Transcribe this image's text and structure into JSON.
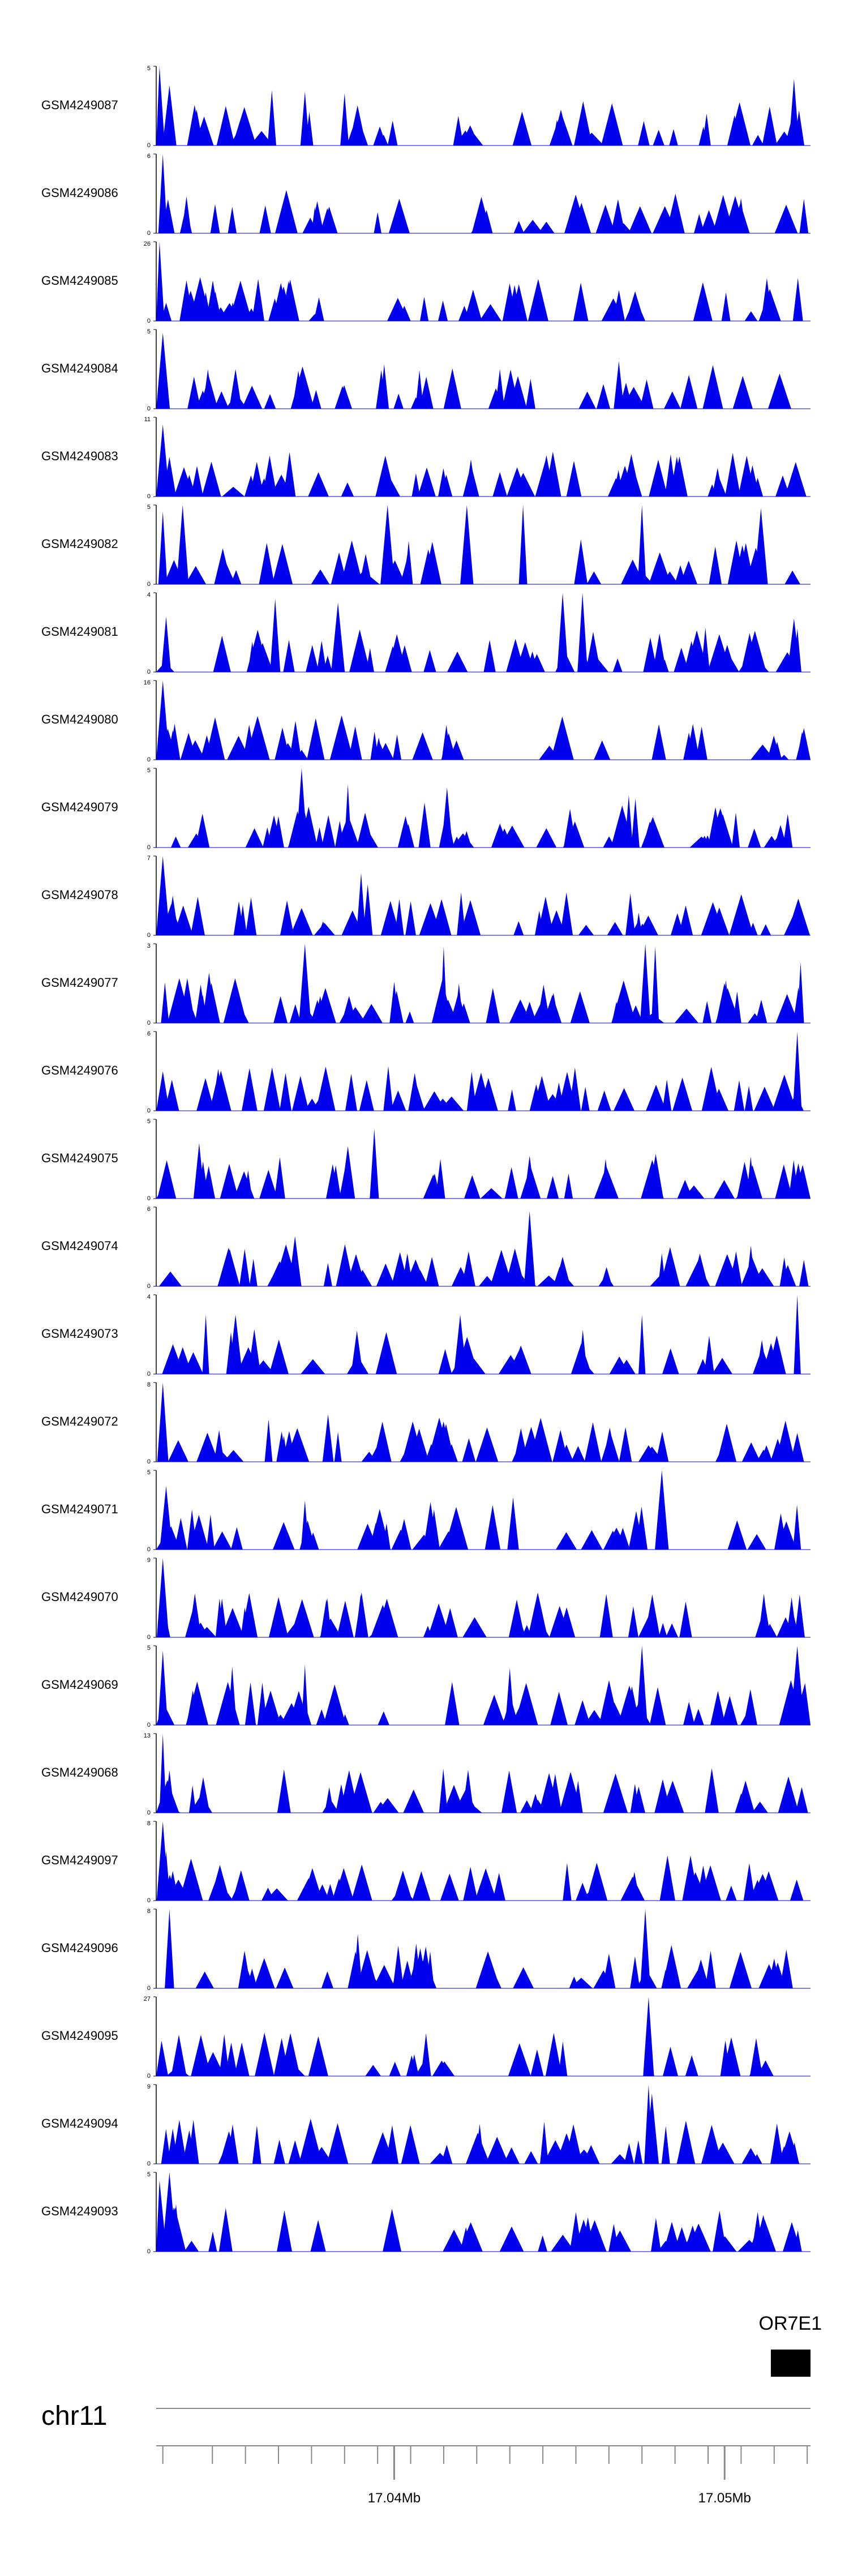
{
  "colors": {
    "fill": "#0000ee",
    "axis": "#000000",
    "text": "#000000",
    "ruler": "#888888"
  },
  "chart_data": {
    "type": "area",
    "genomic_range_mb": [
      17.0328,
      17.0526
    ],
    "tracks": [
      {
        "name": "GSM4249087",
        "ymax": "5",
        "ylim": [
          0,
          5
        ],
        "seed": 87,
        "peaks": [
          [
            17.0329,
            5.0
          ],
          [
            17.0332,
            3.8
          ],
          [
            17.0363,
            3.5
          ],
          [
            17.0373,
            3.4
          ],
          [
            17.0385,
            3.3
          ],
          [
            17.0503,
            1.9
          ],
          [
            17.0521,
            4.2
          ]
        ]
      },
      {
        "name": "GSM4249086",
        "ymax": "6",
        "ylim": [
          0,
          6
        ],
        "seed": 86,
        "peaks": [
          [
            17.033,
            6.0
          ],
          [
            17.0337,
            2.0
          ],
          [
            17.0361,
            2.1
          ],
          [
            17.0376,
            2.0
          ],
          [
            17.0395,
            1.6
          ],
          [
            17.0524,
            2.6
          ]
        ]
      },
      {
        "name": "GSM4249085",
        "ymax": "26",
        "ylim": [
          0,
          26
        ],
        "seed": 85,
        "peaks": [
          [
            17.0329,
            26.0
          ],
          [
            17.0331,
            6.0
          ],
          [
            17.0346,
            2.0
          ],
          [
            17.0376,
            2.3
          ],
          [
            17.0467,
            2.0
          ],
          [
            17.0508,
            3.2
          ]
        ]
      },
      {
        "name": "GSM4249084",
        "ymax": "5",
        "ylim": [
          0,
          5
        ],
        "seed": 84,
        "peaks": [
          [
            17.033,
            4.8
          ],
          [
            17.0352,
            2.5
          ],
          [
            17.0371,
            2.4
          ],
          [
            17.0397,
            2.8
          ],
          [
            17.0432,
            2.5
          ],
          [
            17.0468,
            3.0
          ]
        ]
      },
      {
        "name": "GSM4249083",
        "ymax": "11",
        "ylim": [
          0,
          11
        ],
        "seed": 83,
        "peaks": [
          [
            17.033,
            10.0
          ],
          [
            17.0332,
            5.5
          ],
          [
            17.0338,
            3.0
          ],
          [
            17.0368,
            3.5
          ],
          [
            17.0432,
            3.4
          ],
          [
            17.0473,
            3.1
          ],
          [
            17.051,
            2.6
          ]
        ]
      },
      {
        "name": "GSM4249082",
        "ymax": "5",
        "ylim": [
          0,
          5
        ],
        "seed": 82,
        "peaks": [
          [
            17.033,
            4.6
          ],
          [
            17.0336,
            5.0
          ],
          [
            17.0398,
            5.0
          ],
          [
            17.0422,
            5.0
          ],
          [
            17.0439,
            5.0
          ],
          [
            17.0475,
            5.0
          ],
          [
            17.0511,
            4.8
          ]
        ]
      },
      {
        "name": "GSM4249081",
        "ymax": "4",
        "ylim": [
          0,
          4
        ],
        "seed": 81,
        "peaks": [
          [
            17.0331,
            2.8
          ],
          [
            17.0364,
            3.7
          ],
          [
            17.0383,
            3.5
          ],
          [
            17.0451,
            4.0
          ],
          [
            17.0457,
            4.0
          ],
          [
            17.0521,
            2.7
          ]
        ]
      },
      {
        "name": "GSM4249080",
        "ymax": "16",
        "ylim": [
          0,
          16
        ],
        "seed": 80,
        "peaks": [
          [
            17.033,
            16.0
          ],
          [
            17.0333,
            6.0
          ],
          [
            17.0372,
            2.0
          ],
          [
            17.048,
            1.5
          ],
          [
            17.0518,
            1.0
          ]
        ]
      },
      {
        "name": "GSM4249079",
        "ymax": "5",
        "ylim": [
          0,
          5
        ],
        "seed": 79,
        "peaks": [
          [
            17.0372,
            5.0
          ],
          [
            17.0386,
            4.0
          ],
          [
            17.0416,
            3.8
          ],
          [
            17.0471,
            3.3
          ],
          [
            17.0473,
            3.1
          ],
          [
            17.0509,
            1.2
          ]
        ]
      },
      {
        "name": "GSM4249078",
        "ymax": "7",
        "ylim": [
          0,
          7
        ],
        "seed": 78,
        "peaks": [
          [
            17.033,
            7.0
          ],
          [
            17.0333,
            3.5
          ],
          [
            17.0353,
            3.0
          ],
          [
            17.039,
            5.5
          ],
          [
            17.0392,
            4.5
          ],
          [
            17.0405,
            3.0
          ],
          [
            17.0474,
            2.0
          ]
        ]
      },
      {
        "name": "GSM4249077",
        "ymax": "3",
        "ylim": [
          0,
          3
        ],
        "seed": 77,
        "peaks": [
          [
            17.0344,
            1.9
          ],
          [
            17.0373,
            3.0
          ],
          [
            17.0415,
            2.9
          ],
          [
            17.0476,
            3.0
          ],
          [
            17.0479,
            2.9
          ],
          [
            17.0523,
            2.3
          ]
        ]
      },
      {
        "name": "GSM4249076",
        "ymax": "6",
        "ylim": [
          0,
          6
        ],
        "seed": 76,
        "peaks": [
          [
            17.033,
            3.0
          ],
          [
            17.0346,
            2.0
          ],
          [
            17.0387,
            2.8
          ],
          [
            17.0443,
            2.0
          ],
          [
            17.0522,
            6.0
          ]
        ]
      },
      {
        "name": "GSM4249075",
        "ymax": "5",
        "ylim": [
          0,
          5
        ],
        "seed": 75,
        "peaks": [
          [
            17.0341,
            3.5
          ],
          [
            17.0386,
            3.3
          ],
          [
            17.0394,
            4.4
          ],
          [
            17.0414,
            2.5
          ],
          [
            17.0441,
            2.7
          ],
          [
            17.0464,
            2.5
          ]
        ]
      },
      {
        "name": "GSM4249074",
        "ymax": "6",
        "ylim": [
          0,
          6
        ],
        "seed": 74,
        "peaks": [
          [
            17.037,
            3.8
          ],
          [
            17.0404,
            2.5
          ],
          [
            17.0441,
            5.7
          ],
          [
            17.0481,
            2.5
          ],
          [
            17.0503,
            2.0
          ],
          [
            17.0524,
            2.0
          ]
        ]
      },
      {
        "name": "GSM4249073",
        "ymax": "4",
        "ylim": [
          0,
          4
        ],
        "seed": 73,
        "peaks": [
          [
            17.0343,
            3.0
          ],
          [
            17.0352,
            3.0
          ],
          [
            17.042,
            3.0
          ],
          [
            17.0475,
            3.0
          ],
          [
            17.0522,
            4.0
          ]
        ]
      },
      {
        "name": "GSM4249072",
        "ymax": "8",
        "ylim": [
          0,
          8
        ],
        "seed": 72,
        "peaks": [
          [
            17.033,
            8.0
          ],
          [
            17.0362,
            4.3
          ],
          [
            17.038,
            4.8
          ],
          [
            17.0383,
            3.0
          ],
          [
            17.047,
            3.5
          ],
          [
            17.0522,
            2.9
          ]
        ]
      },
      {
        "name": "GSM4249071",
        "ymax": "5",
        "ylim": [
          0,
          5
        ],
        "seed": 71,
        "peaks": [
          [
            17.0331,
            4.0
          ],
          [
            17.0373,
            3.1
          ],
          [
            17.0411,
            3.0
          ],
          [
            17.0436,
            3.3
          ],
          [
            17.0481,
            5.0
          ]
        ]
      },
      {
        "name": "GSM4249070",
        "ymax": "9",
        "ylim": [
          0,
          9
        ],
        "seed": 70,
        "peaks": [
          [
            17.033,
            9.0
          ],
          [
            17.039,
            2.2
          ],
          [
            17.0438,
            2.2
          ],
          [
            17.0512,
            4.3
          ],
          [
            17.0521,
            2.4
          ]
        ]
      },
      {
        "name": "GSM4249069",
        "ymax": "5",
        "ylim": [
          0,
          5
        ],
        "seed": 69,
        "peaks": [
          [
            17.033,
            4.7
          ],
          [
            17.0351,
            3.7
          ],
          [
            17.0373,
            3.8
          ],
          [
            17.0435,
            3.6
          ],
          [
            17.0475,
            5.0
          ],
          [
            17.0522,
            5.0
          ]
        ]
      },
      {
        "name": "GSM4249068",
        "ymax": "13",
        "ylim": [
          0,
          13
        ],
        "seed": 68,
        "peaks": [
          [
            17.033,
            13.0
          ],
          [
            17.0332,
            7.0
          ],
          [
            17.0339,
            4.5
          ],
          [
            17.0384,
            4.7
          ],
          [
            17.0474,
            4.3
          ],
          [
            17.0505,
            3.2
          ]
        ]
      },
      {
        "name": "GSM4249097",
        "ymax": "8",
        "ylim": [
          0,
          8
        ],
        "seed": 97,
        "peaks": [
          [
            17.033,
            8.0
          ],
          [
            17.0331,
            5.0
          ],
          [
            17.0333,
            3.0
          ],
          [
            17.0457,
            1.8
          ],
          [
            17.046,
            1.5
          ],
          [
            17.0502,
            1.5
          ]
        ]
      },
      {
        "name": "GSM4249096",
        "ymax": "8",
        "ylim": [
          0,
          8
        ],
        "seed": 96,
        "peaks": [
          [
            17.0332,
            8.0
          ],
          [
            17.0357,
            2.0
          ],
          [
            17.0389,
            5.5
          ],
          [
            17.0404,
            2.8
          ],
          [
            17.0465,
            3.5
          ],
          [
            17.0476,
            8.0
          ],
          [
            17.0515,
            3.0
          ]
        ]
      },
      {
        "name": "GSM4249095",
        "ymax": "27",
        "ylim": [
          0,
          27
        ],
        "seed": 95,
        "peaks": [
          [
            17.033,
            3.0
          ],
          [
            17.0351,
            4.0
          ],
          [
            17.0477,
            27.0
          ]
        ]
      },
      {
        "name": "GSM4249094",
        "ymax": "9",
        "ylim": [
          0,
          9
        ],
        "seed": 94,
        "peaks": [
          [
            17.0333,
            4.0
          ],
          [
            17.0335,
            5.0
          ],
          [
            17.0338,
            3.8
          ],
          [
            17.0477,
            9.0
          ],
          [
            17.0478,
            8.0
          ],
          [
            17.0518,
            2.0
          ]
        ]
      },
      {
        "name": "GSM4249093",
        "ymax": "5",
        "ylim": [
          0,
          5
        ],
        "seed": 93,
        "peaks": [
          [
            17.0329,
            4.5
          ],
          [
            17.0332,
            5.0
          ],
          [
            17.0334,
            3.0
          ],
          [
            17.0455,
            2.5
          ],
          [
            17.051,
            2.5
          ]
        ]
      }
    ],
    "gene": {
      "name": "OR7E1",
      "start_mb": 17.0514,
      "end_mb": 17.0526
    },
    "chromosome": "chr11",
    "axis": {
      "ticks_mb": [
        17.033,
        17.0345,
        17.0355,
        17.0365,
        17.0375,
        17.0385,
        17.0395,
        17.0405,
        17.0415,
        17.0425,
        17.0435,
        17.0445,
        17.0455,
        17.0465,
        17.0475,
        17.0485,
        17.0495,
        17.0505,
        17.0515,
        17.0525
      ],
      "labels": [
        {
          "mb": 17.04,
          "label": "17.04Mb"
        },
        {
          "mb": 17.05,
          "label": "17.05Mb"
        }
      ]
    },
    "grid": false,
    "legend": "none"
  }
}
